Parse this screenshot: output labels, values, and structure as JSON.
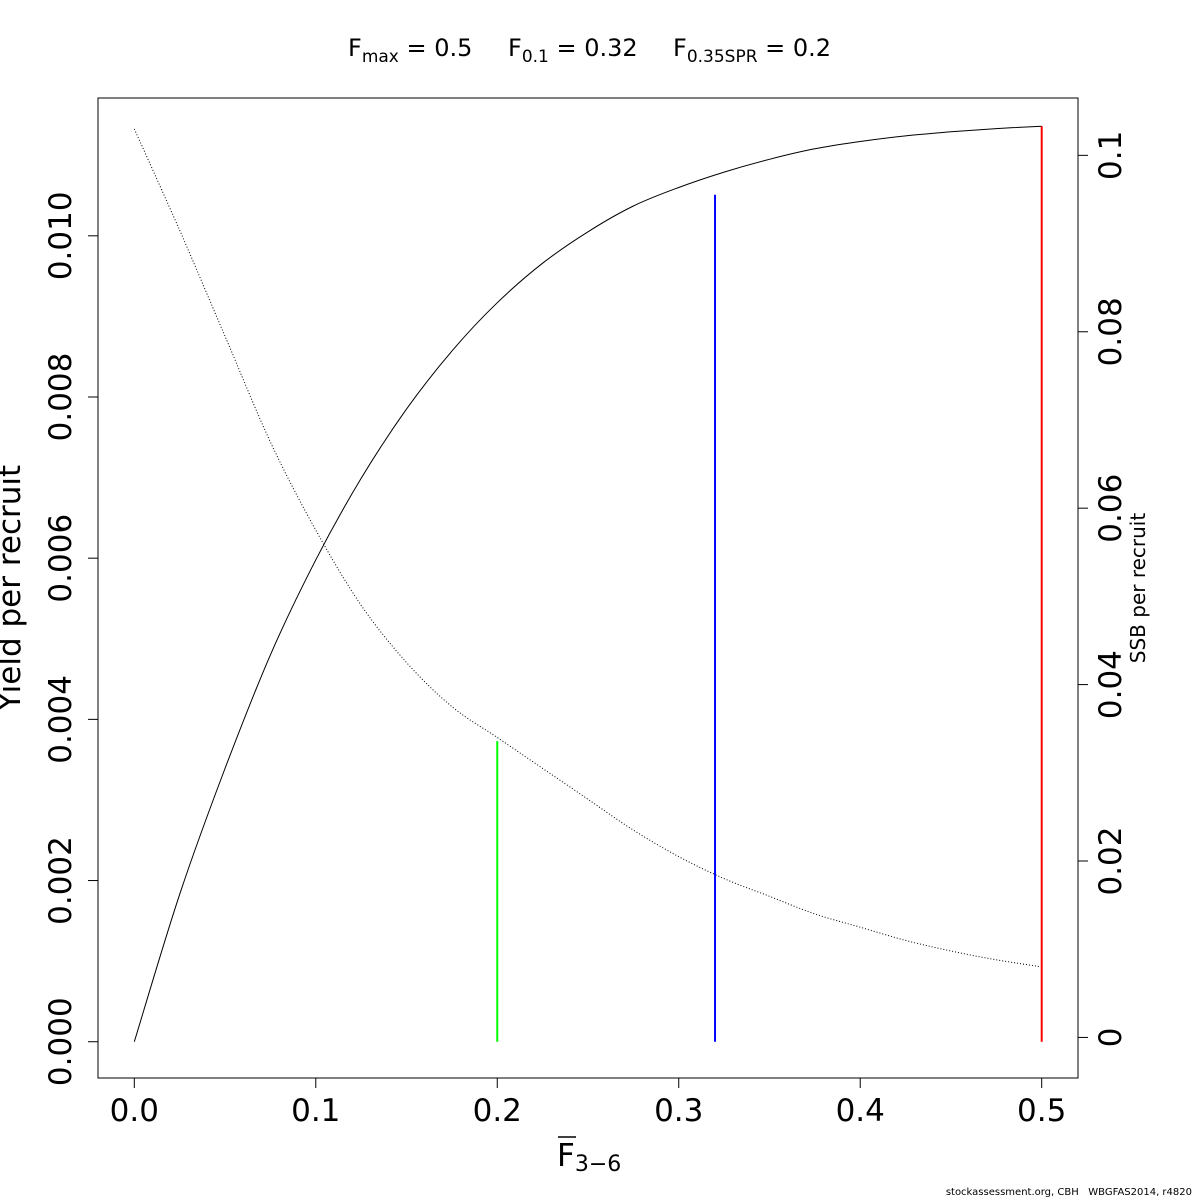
{
  "title": {
    "fmax": {
      "base": "F",
      "sub": "max",
      "rest": " = 0.5"
    },
    "f01": {
      "base": "F",
      "sub": "0.1",
      "rest": " = 0.32"
    },
    "fspr": {
      "base": "F",
      "sub": "0.35SPR",
      "rest": " = 0.2"
    }
  },
  "footer": "stockassessment.org, CBH   WBGFAS2014, r4820",
  "chart_data": {
    "type": "line",
    "xlabel": {
      "base": "F",
      "sub": "3−6",
      "overbar": true
    },
    "ylabel": "Yield per recruit",
    "y2label": "SSB per recruit",
    "xlim": [
      -0.02,
      0.52
    ],
    "ylim": [
      -0.00045,
      0.01171
    ],
    "y2lim": [
      -0.0046,
      0.1065
    ],
    "x_ticks": [
      0.0,
      0.1,
      0.2,
      0.3,
      0.4,
      0.5
    ],
    "x_tick_labels": [
      "0.0",
      "0.1",
      "0.2",
      "0.3",
      "0.4",
      "0.5"
    ],
    "y_ticks": [
      0.0,
      0.002,
      0.004,
      0.006,
      0.008,
      0.01
    ],
    "y_tick_labels": [
      "0.000",
      "0.002",
      "0.004",
      "0.006",
      "0.008",
      "0.010"
    ],
    "y2_ticks": [
      0,
      0.02,
      0.04,
      0.06,
      0.08,
      0.1
    ],
    "y2_tick_labels": [
      "0",
      "0.02",
      "0.04",
      "0.06",
      "0.08",
      "0.1"
    ],
    "grid": false,
    "series": [
      {
        "axis": "left",
        "style": "solid",
        "color": "#000000",
        "x": [
          0.0,
          0.025,
          0.05,
          0.075,
          0.1,
          0.125,
          0.15,
          0.175,
          0.2,
          0.225,
          0.25,
          0.275,
          0.3,
          0.325,
          0.35,
          0.375,
          0.4,
          0.425,
          0.45,
          0.475,
          0.5
        ],
        "y": [
          0.0,
          0.00183,
          0.00339,
          0.0048,
          0.00598,
          0.00699,
          0.00785,
          0.00857,
          0.00917,
          0.00966,
          0.01005,
          0.01037,
          0.0106,
          0.01079,
          0.01095,
          0.01108,
          0.01117,
          0.01124,
          0.01129,
          0.01133,
          0.01136
        ]
      },
      {
        "axis": "right",
        "style": "dotted",
        "color": "#000000",
        "x": [
          0.0,
          0.025,
          0.05,
          0.075,
          0.1,
          0.125,
          0.15,
          0.175,
          0.2,
          0.225,
          0.25,
          0.275,
          0.3,
          0.325,
          0.35,
          0.375,
          0.4,
          0.425,
          0.45,
          0.475,
          0.5
        ],
        "y": [
          0.103,
          0.0915,
          0.0795,
          0.0675,
          0.0575,
          0.049,
          0.0425,
          0.0375,
          0.034,
          0.0305,
          0.027,
          0.0235,
          0.0205,
          0.018,
          0.016,
          0.014,
          0.0125,
          0.011,
          0.0098,
          0.0088,
          0.008
        ]
      }
    ],
    "reference_lines": [
      {
        "x": 0.2,
        "y_top": 0.00373,
        "color": "#00ff00"
      },
      {
        "x": 0.32,
        "y_top": 0.01051,
        "color": "#0000ff"
      },
      {
        "x": 0.5,
        "y_top": 0.01136,
        "color": "#ff0000"
      }
    ]
  }
}
